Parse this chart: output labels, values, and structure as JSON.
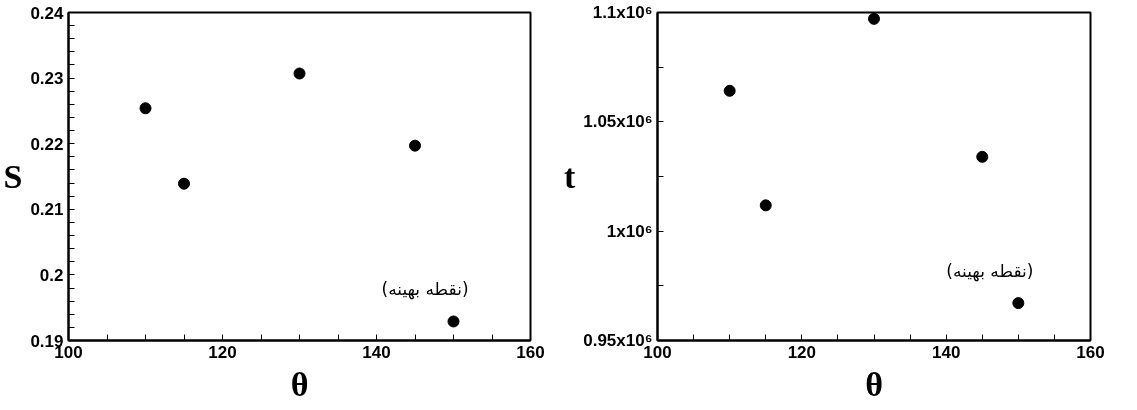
{
  "chart_data": [
    {
      "type": "scatter",
      "xlabel": "θ",
      "ylabel": "S",
      "x": [
        110,
        115,
        130,
        145,
        150
      ],
      "series": [
        {
          "color": "#000000",
          "values": [
            0.2254,
            0.2139,
            0.2307,
            0.2197,
            0.1929
          ]
        }
      ],
      "marker": "circle",
      "grid": false,
      "xlim": [
        100,
        160
      ],
      "xticks": [
        100,
        {
          "value": 105,
          "label": null
        },
        {
          "value": 110,
          "label": null
        },
        {
          "value": 115,
          "label": null
        },
        120,
        {
          "value": 125,
          "label": null
        },
        {
          "value": 130,
          "label": null
        },
        {
          "value": 135,
          "label": null
        },
        140,
        {
          "value": 145,
          "label": null
        },
        {
          "value": 150,
          "label": null
        },
        {
          "value": 155,
          "label": null
        },
        160
      ],
      "ylim": [
        0.19,
        0.24
      ],
      "yticks": [
        0.19,
        {
          "value": 0.192,
          "label": null
        },
        {
          "value": 0.194,
          "label": null
        },
        {
          "value": 0.196,
          "label": null
        },
        {
          "value": 0.198,
          "label": null
        },
        0.2,
        {
          "value": 0.202,
          "label": null
        },
        {
          "value": 0.204,
          "label": null
        },
        {
          "value": 0.206,
          "label": null
        },
        {
          "value": 0.208,
          "label": null
        },
        0.21,
        {
          "value": 0.212,
          "label": null
        },
        {
          "value": 0.214,
          "label": null
        },
        {
          "value": 0.216,
          "label": null
        },
        {
          "value": 0.218,
          "label": null
        },
        0.22,
        {
          "value": 0.222,
          "label": null
        },
        {
          "value": 0.224,
          "label": null
        },
        {
          "value": 0.226,
          "label": null
        },
        {
          "value": 0.228,
          "label": null
        },
        0.23,
        {
          "value": 0.232,
          "label": null
        },
        {
          "value": 0.234,
          "label": null
        },
        {
          "value": 0.236,
          "label": null
        },
        {
          "value": 0.238,
          "label": null
        },
        0.24
      ],
      "annotations": [
        {
          "text": "(نقطه بهینه)",
          "x": 150,
          "y": 0.1929
        }
      ]
    },
    {
      "type": "scatter",
      "xlabel": "θ",
      "ylabel": "t",
      "x": [
        110,
        115,
        130,
        145,
        150
      ],
      "series": [
        {
          "color": "#000000",
          "values": [
            1064200,
            1011800,
            1097100,
            1034000,
            967100
          ]
        }
      ],
      "marker": "circle",
      "grid": false,
      "xlim": [
        100,
        160
      ],
      "xticks": [
        100,
        {
          "value": 105,
          "label": null
        },
        {
          "value": 110,
          "label": null
        },
        {
          "value": 115,
          "label": null
        },
        120,
        {
          "value": 125,
          "label": null
        },
        {
          "value": 130,
          "label": null
        },
        {
          "value": 135,
          "label": null
        },
        140,
        {
          "value": 145,
          "label": null
        },
        {
          "value": 150,
          "label": null
        },
        {
          "value": 155,
          "label": null
        },
        160
      ],
      "ylim": [
        950000,
        1100000
      ],
      "yticks": [
        {
          "value": 950000,
          "label": "0.95x10⁶"
        },
        {
          "value": 975000,
          "label": null
        },
        {
          "value": 1000000,
          "label": "1x10⁶"
        },
        {
          "value": 1025000,
          "label": null
        },
        {
          "value": 1050000,
          "label": "1.05x10⁶"
        },
        {
          "value": 1075000,
          "label": null
        },
        {
          "value": 1100000,
          "label": "1.1x10⁶"
        }
      ],
      "annotations": [
        {
          "text": "(نقطه بهینه)",
          "x": 150,
          "y": 967100
        }
      ]
    }
  ]
}
